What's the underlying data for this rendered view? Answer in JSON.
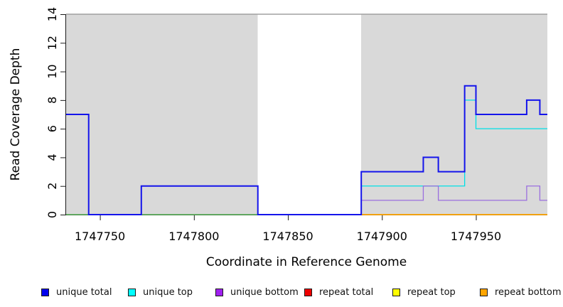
{
  "chart_data": {
    "type": "line",
    "subtype": "step-coverage",
    "xlabel": "Coordinate in Reference Genome",
    "ylabel": "Read Coverage Depth",
    "xlim": [
      1747732,
      1747988
    ],
    "ylim": [
      0,
      14
    ],
    "x_ticks": [
      "1747750",
      "1747800",
      "1747850",
      "1747900",
      "1747950"
    ],
    "x_tick_values": [
      1747750,
      1747800,
      1747850,
      1747900,
      1747950
    ],
    "y_ticks": [
      "0",
      "2",
      "4",
      "6",
      "8",
      "10",
      "12",
      "14"
    ],
    "y_tick_values": [
      0,
      2,
      4,
      6,
      8,
      10,
      12,
      14
    ],
    "grid": false,
    "legend_position": "bottom",
    "colors": {
      "shaded_region": "#d9d9d9",
      "gap_region": "#ffffff",
      "top_border": "#a0a0a0",
      "axis": "#1a1a1a"
    },
    "background_regions": [
      {
        "name": "shaded-region-left",
        "start": 1747732,
        "end": 1747834,
        "fill": "#d9d9d9"
      },
      {
        "name": "gap-region",
        "start": 1747834,
        "end": 1747889,
        "fill": "#ffffff"
      },
      {
        "name": "shaded-region-right",
        "start": 1747889,
        "end": 1747988,
        "fill": "#d9d9d9"
      }
    ],
    "top_border_value": 14,
    "series": [
      {
        "name": "baseline-left-green",
        "color": "#55b155",
        "width": 1.5,
        "segments": [
          [
            1747732,
            1747834,
            0
          ]
        ]
      },
      {
        "name": "repeat bottom",
        "color": "#ffa500",
        "width": 1.8,
        "segments": [
          [
            1747889,
            1747988,
            0
          ]
        ]
      },
      {
        "name": "unique top",
        "color": "#00e0e6",
        "width": 1.3,
        "segments": [
          [
            1747889,
            1747944,
            2
          ],
          [
            1747944,
            1747950,
            8
          ],
          [
            1747950,
            1747988,
            6
          ]
        ]
      },
      {
        "name": "unique bottom",
        "color": "#9b6fde",
        "width": 1.3,
        "segments": [
          [
            1747889,
            1747922,
            1
          ],
          [
            1747922,
            1747930,
            2
          ],
          [
            1747930,
            1747977,
            1
          ],
          [
            1747977,
            1747984,
            2
          ],
          [
            1747984,
            1747988,
            1
          ]
        ]
      },
      {
        "name": "unique total",
        "color": "#1414eb",
        "width": 2,
        "segments": [
          [
            1747732,
            1747744,
            7
          ],
          [
            1747744,
            1747772,
            0
          ],
          [
            1747772,
            1747834,
            2
          ],
          [
            1747834,
            1747889,
            0
          ],
          [
            1747889,
            1747922,
            3
          ],
          [
            1747922,
            1747930,
            4
          ],
          [
            1747930,
            1747944,
            3
          ],
          [
            1747944,
            1747950,
            9
          ],
          [
            1747950,
            1747977,
            7
          ],
          [
            1747977,
            1747984,
            8
          ],
          [
            1747984,
            1747988,
            7
          ]
        ]
      }
    ],
    "legend": [
      {
        "label": "unique total",
        "color": "#0000ee"
      },
      {
        "label": "unique top",
        "color": "#00ffff"
      },
      {
        "label": "unique bottom",
        "color": "#a020f0"
      },
      {
        "label": "repeat total",
        "color": "#ee0000"
      },
      {
        "label": "repeat top",
        "color": "#ffff00"
      },
      {
        "label": "repeat bottom",
        "color": "#ffa500"
      }
    ]
  }
}
